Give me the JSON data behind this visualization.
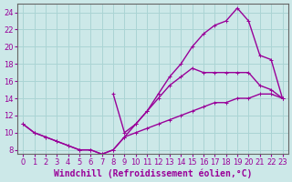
{
  "xlabel": "Windchill (Refroidissement éolien,°C)",
  "bg_color": "#cce8e8",
  "line_color": "#990099",
  "grid_color": "#aad4d4",
  "xlim": [
    -0.5,
    23.5
  ],
  "ylim": [
    7.5,
    25.0
  ],
  "xticks": [
    0,
    1,
    2,
    3,
    4,
    5,
    6,
    7,
    8,
    9,
    10,
    11,
    12,
    13,
    14,
    15,
    16,
    17,
    18,
    19,
    20,
    21,
    22,
    23
  ],
  "yticks": [
    8,
    10,
    12,
    14,
    16,
    18,
    20,
    22,
    24
  ],
  "line1_x": [
    0,
    1,
    2,
    3,
    4,
    5,
    6,
    7,
    8,
    9,
    10,
    11,
    12,
    13,
    14,
    15,
    16,
    17,
    18,
    19,
    20,
    21,
    22,
    23
  ],
  "line1_y": [
    11,
    10,
    9.5,
    9,
    8.5,
    8,
    8,
    7.5,
    8,
    9.5,
    11,
    12.5,
    14.5,
    16.5,
    18,
    20,
    21.5,
    22.5,
    23,
    24.5,
    23,
    19,
    18.5,
    14
  ],
  "line2_x": [
    0,
    1,
    2,
    3,
    4,
    5,
    6,
    7,
    8,
    9,
    10,
    11,
    12,
    13,
    14,
    15,
    16,
    17,
    18,
    19,
    20,
    21,
    22,
    23
  ],
  "line2_y": [
    11,
    10,
    9.5,
    9,
    8.5,
    8,
    8,
    7.5,
    8,
    9.5,
    10,
    10.5,
    11,
    11.5,
    12,
    12.5,
    13,
    13.5,
    13.5,
    14,
    14,
    14.5,
    14.5,
    14
  ],
  "line3_x": [
    8,
    9,
    10,
    11,
    12,
    13,
    14,
    15,
    16,
    17,
    18,
    19,
    20,
    21,
    22,
    23
  ],
  "line3_y": [
    14.5,
    10,
    11,
    12.5,
    14,
    15.5,
    16.5,
    17.5,
    17,
    17,
    17,
    17,
    17,
    15.5,
    15,
    14
  ],
  "marker": "+",
  "markersize": 3,
  "linewidth": 1.0,
  "tick_fontsize": 6,
  "label_fontsize": 7
}
